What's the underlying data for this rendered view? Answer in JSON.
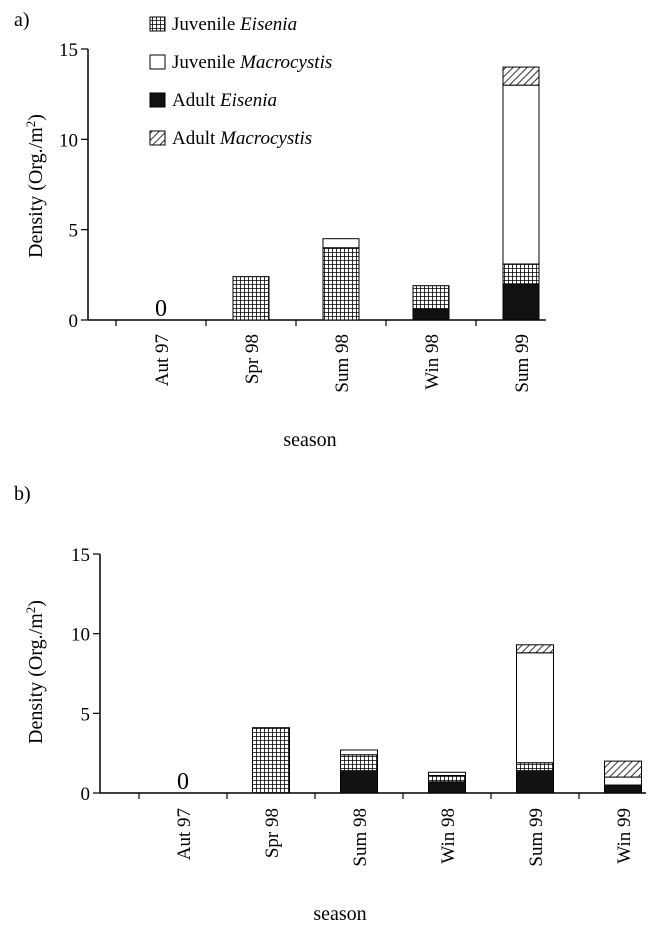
{
  "chart_data": [
    {
      "type": "bar",
      "stacked": true,
      "panel_label": "a)",
      "categories": [
        "Aut 97",
        "Spr 98",
        "Sum 98",
        "Win 98",
        "Sum 99"
      ],
      "series": [
        {
          "name": "Adult Eisenia",
          "pattern": "solid-black",
          "values": [
            0,
            0,
            0,
            0.6,
            2.0
          ]
        },
        {
          "name": "Juvenile Eisenia",
          "pattern": "grid",
          "values": [
            0,
            2.4,
            4.0,
            1.3,
            1.1
          ]
        },
        {
          "name": "Juvenile Macrocystis",
          "pattern": "white",
          "values": [
            0,
            0,
            0.5,
            0,
            9.9
          ]
        },
        {
          "name": "Adult Macrocystis",
          "pattern": "hatch",
          "values": [
            0,
            0,
            0,
            0,
            1.0
          ]
        }
      ],
      "legend": [
        {
          "prefix": "Juvenile ",
          "italic": "Eisenia",
          "pattern": "grid"
        },
        {
          "prefix": "Juvenile ",
          "italic": "Macrocystis",
          "pattern": "white"
        },
        {
          "prefix": "Adult ",
          "italic": "Eisenia",
          "pattern": "solid-black"
        },
        {
          "prefix": "Adult ",
          "italic": "Macrocystis",
          "pattern": "hatch"
        }
      ],
      "zero_label": {
        "category": "Aut 97",
        "text": "0"
      },
      "ylabel": "Density (Org./m",
      "ylabel_sup": "2",
      "ylabel_end": ")",
      "xlabel": "season",
      "ylim": [
        0,
        15
      ],
      "yticks": [
        "0",
        "5",
        "10",
        "15"
      ],
      "legend_position": "top-left"
    },
    {
      "type": "bar",
      "stacked": true,
      "panel_label": "b)",
      "categories": [
        "Aut 97",
        "Spr 98",
        "Sum 98",
        "Win 98",
        "Sum 99",
        "Win 99"
      ],
      "series": [
        {
          "name": "Adult Eisenia",
          "pattern": "solid-black",
          "values": [
            0,
            0,
            1.4,
            0.7,
            1.4,
            0.5
          ]
        },
        {
          "name": "Juvenile Eisenia",
          "pattern": "grid",
          "values": [
            0,
            4.1,
            1.0,
            0.4,
            0.5,
            0
          ]
        },
        {
          "name": "Juvenile Macrocystis",
          "pattern": "white",
          "values": [
            0,
            0,
            0.3,
            0.2,
            6.9,
            0.5
          ]
        },
        {
          "name": "Adult Macrocystis",
          "pattern": "hatch",
          "values": [
            0,
            0,
            0,
            0,
            0.5,
            1.0
          ]
        }
      ],
      "zero_label": {
        "category": "Aut 97",
        "text": "0"
      },
      "ylabel": "Density (Org./m",
      "ylabel_sup": "2",
      "ylabel_end": ")",
      "xlabel": "season",
      "ylim": [
        0,
        15
      ],
      "yticks": [
        "0",
        "5",
        "10",
        "15"
      ]
    }
  ],
  "colors": {
    "ink": "#000000",
    "paper": "#ffffff",
    "adult_eisenia": "#111111"
  }
}
